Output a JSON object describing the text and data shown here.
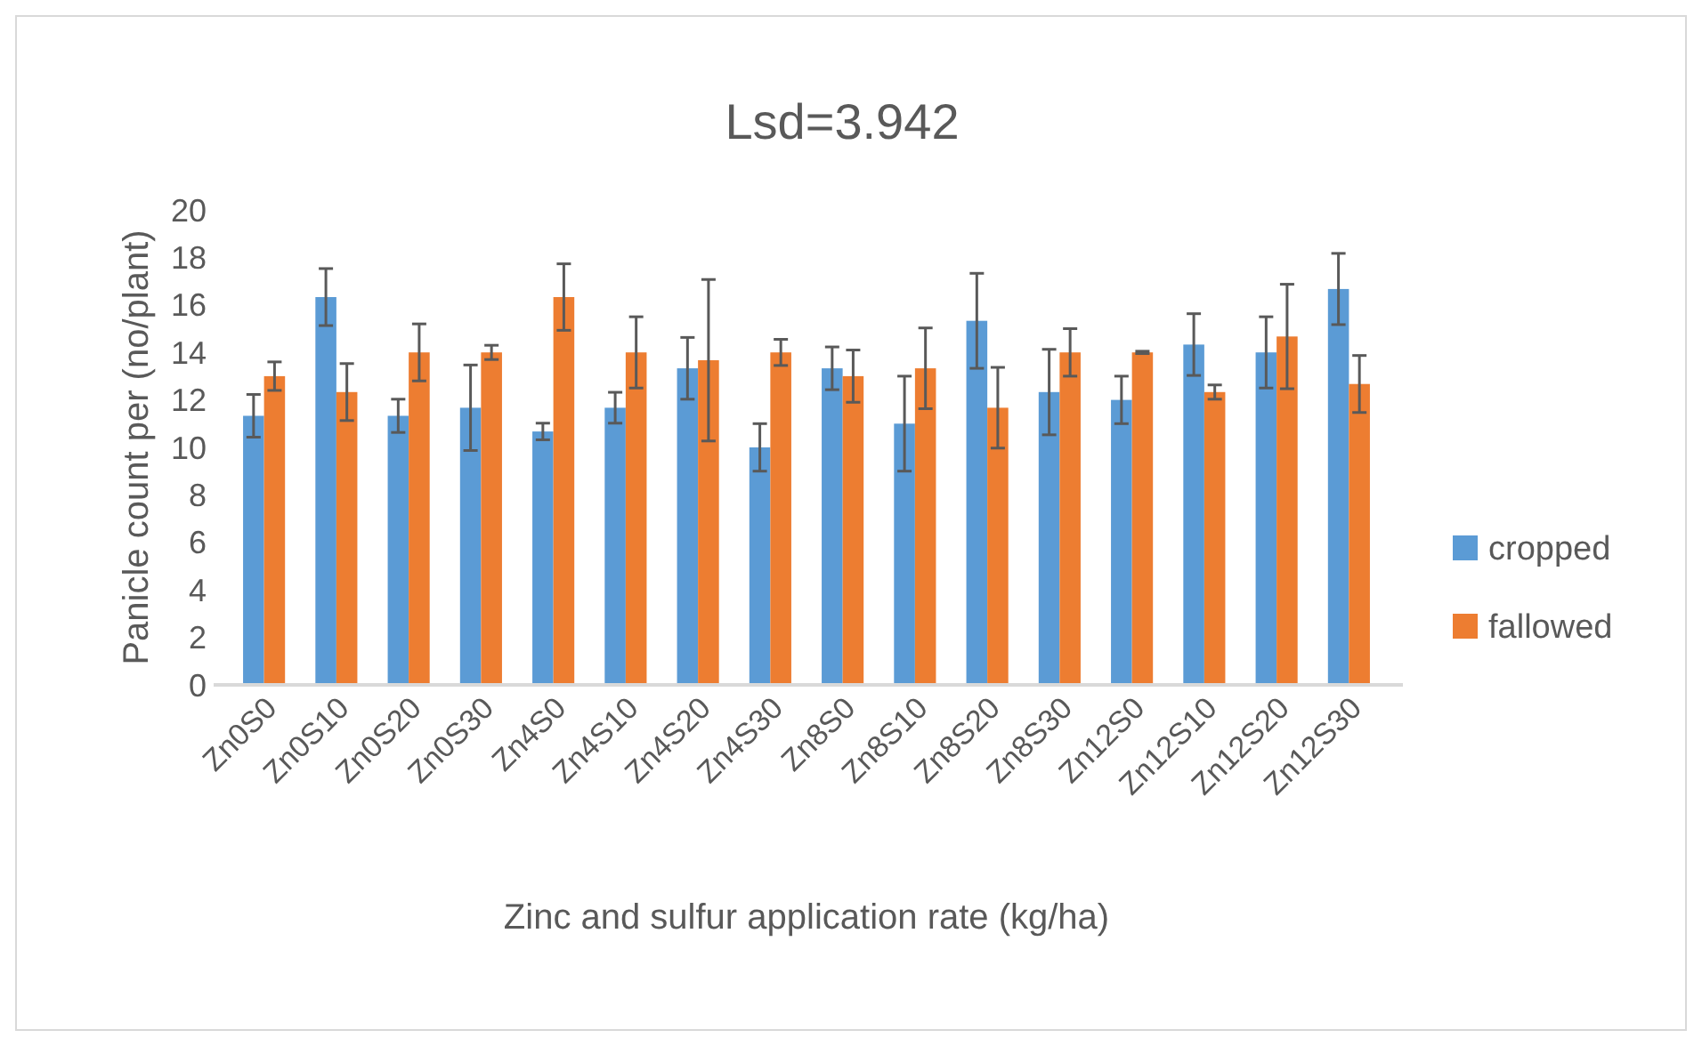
{
  "chart_data": {
    "type": "bar",
    "title": "Lsd=3.942",
    "xlabel": "Zinc and sulfur application rate (kg/ha)",
    "ylabel": "Panicle count per (no/plant)",
    "categories": [
      "Zn0S0",
      "Zn0S10",
      "Zn0S20",
      "Zn0S30",
      "Zn4S0",
      "Zn4S10",
      "Zn4S20",
      "Zn4S30",
      "Zn8S0",
      "Zn8S10",
      "Zn8S20",
      "Zn8S30",
      "Zn12S0",
      "Zn12S10",
      "Zn12S20",
      "Zn12S30"
    ],
    "series": [
      {
        "name": "cropped",
        "color": "#5b9bd5",
        "values": [
          11.33,
          16.33,
          11.33,
          11.67,
          10.67,
          11.67,
          13.33,
          10,
          13.33,
          11,
          15.33,
          12.33,
          12,
          14.33,
          14,
          16.67
        ],
        "errors": [
          0.9,
          1.2,
          0.7,
          1.8,
          0.35,
          0.65,
          1.3,
          1.0,
          0.9,
          2.0,
          2.0,
          1.8,
          1.0,
          1.3,
          1.5,
          1.5
        ]
      },
      {
        "name": "fallowed",
        "color": "#ed7d31",
        "values": [
          13,
          12.33,
          14,
          14,
          16.33,
          14,
          13.67,
          14,
          13,
          13.33,
          11.67,
          14,
          14,
          12.33,
          14.67,
          12.67
        ],
        "errors": [
          0.6,
          1.2,
          1.2,
          0.3,
          1.4,
          1.5,
          3.4,
          0.55,
          1.1,
          1.7,
          1.7,
          1.0,
          0.05,
          0.3,
          2.2,
          1.2
        ]
      }
    ],
    "ylim": [
      0,
      20
    ],
    "yticks": [
      0,
      2,
      4,
      6,
      8,
      10,
      12,
      14,
      16,
      18,
      20
    ],
    "grid": false,
    "legend": "right"
  }
}
